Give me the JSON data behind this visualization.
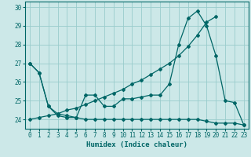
{
  "xlabel": "Humidex (Indice chaleur)",
  "background_color": "#cce8e8",
  "grid_color": "#99cccc",
  "line_color": "#006666",
  "xlim": [
    -0.5,
    23.5
  ],
  "ylim": [
    23.5,
    30.3
  ],
  "yticks": [
    24,
    25,
    26,
    27,
    28,
    29,
    30
  ],
  "xticks": [
    0,
    1,
    2,
    3,
    4,
    5,
    6,
    7,
    8,
    9,
    10,
    11,
    12,
    13,
    14,
    15,
    16,
    17,
    18,
    19,
    20,
    21,
    22,
    23
  ],
  "line1_x": [
    0,
    1,
    2,
    3,
    4,
    5,
    6,
    7,
    8,
    9,
    10,
    11,
    12,
    13,
    14,
    15,
    16,
    17,
    18,
    19,
    20,
    21,
    22,
    23
  ],
  "line1_y": [
    27.0,
    26.5,
    24.7,
    24.2,
    24.1,
    24.1,
    24.0,
    24.0,
    24.0,
    24.0,
    24.0,
    24.0,
    24.0,
    24.0,
    24.0,
    24.0,
    24.0,
    24.0,
    24.0,
    23.9,
    23.8,
    23.8,
    23.8,
    23.7
  ],
  "line2_x": [
    0,
    1,
    2,
    3,
    4,
    5,
    6,
    7,
    8,
    9,
    10,
    11,
    12,
    13,
    14,
    15,
    16,
    17,
    18,
    19,
    20,
    21,
    22,
    23
  ],
  "line2_y": [
    27.0,
    26.5,
    24.7,
    24.3,
    24.2,
    24.1,
    25.3,
    25.3,
    24.7,
    24.7,
    25.1,
    25.1,
    25.2,
    25.3,
    25.3,
    25.9,
    28.0,
    29.4,
    29.8,
    29.0,
    27.4,
    25.0,
    24.9,
    23.7
  ],
  "line3_x": [
    0,
    1,
    2,
    3,
    4,
    5,
    6,
    7,
    8,
    9,
    10,
    11,
    12,
    13,
    14,
    15,
    16,
    17,
    18,
    19,
    20
  ],
  "line3_y": [
    24.0,
    24.1,
    24.2,
    24.3,
    24.5,
    24.6,
    24.8,
    25.0,
    25.2,
    25.4,
    25.6,
    25.9,
    26.1,
    26.4,
    26.7,
    27.0,
    27.4,
    27.9,
    28.5,
    29.2,
    29.5
  ]
}
